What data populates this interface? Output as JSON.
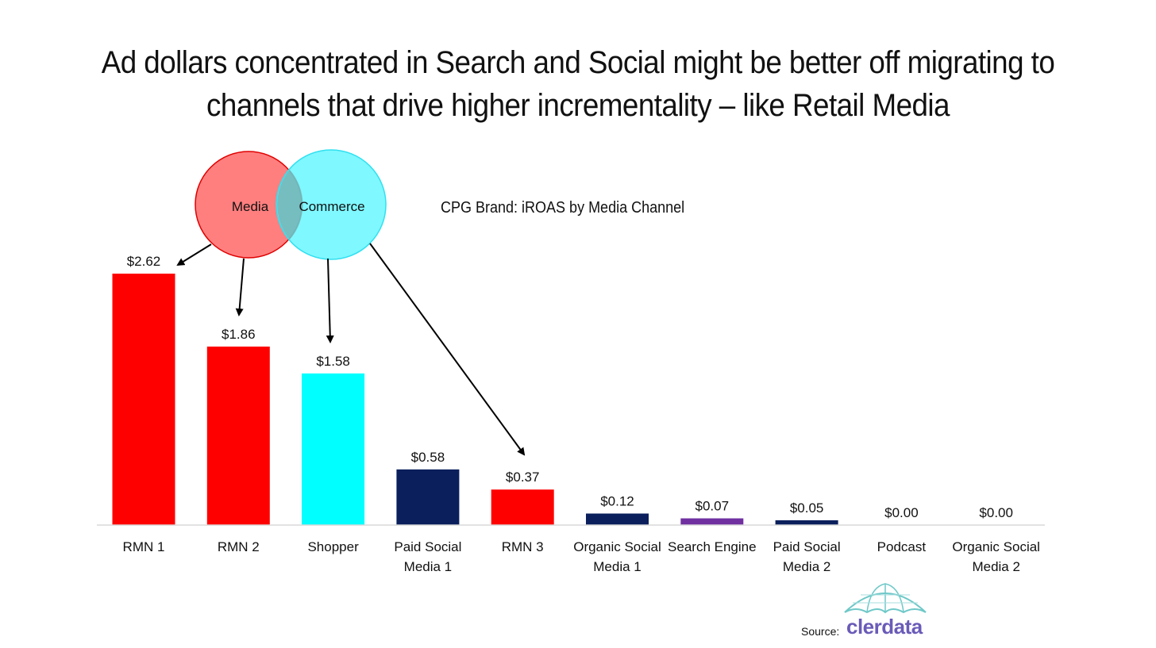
{
  "headline": {
    "line1": "Ad dollars concentrated in Search and Social might be better off migrating to",
    "line2": "channels that drive higher incrementality – like Retail Media"
  },
  "venn": {
    "left_label": "Media",
    "right_label": "Commerce",
    "left_color": "#ff8080",
    "right_color": "#80ffff"
  },
  "source": {
    "label": "Source:",
    "logo_text": "clerdata",
    "logo_color": "#6a5bb8"
  },
  "chart_data": {
    "type": "bar",
    "title": "CPG Brand: iROAS by Media Channel",
    "categories": [
      [
        "RMN 1"
      ],
      [
        "RMN 2"
      ],
      [
        "Shopper"
      ],
      [
        "Paid Social",
        "Media 1"
      ],
      [
        "RMN 3"
      ],
      [
        "Organic Social",
        "Media 1"
      ],
      [
        "Search Engine"
      ],
      [
        "Paid Social",
        "Media 2"
      ],
      [
        "Podcast"
      ],
      [
        "Organic Social",
        "Media 2"
      ]
    ],
    "values": [
      2.62,
      1.86,
      1.58,
      0.58,
      0.37,
      0.12,
      0.07,
      0.05,
      0.0,
      0.0
    ],
    "data_labels": [
      "$2.62",
      "$1.86",
      "$1.58",
      "$0.58",
      "$0.37",
      "$0.12",
      "$0.07",
      "$0.05",
      "$0.00",
      "$0.00"
    ],
    "colors": [
      "#ff0000",
      "#ff0000",
      "#00ffff",
      "#0a1f5c",
      "#ff0000",
      "#0a1f5c",
      "#7030a0",
      "#0a1f5c",
      "#0a1f5c",
      "#0a1f5c"
    ],
    "xlabel": "",
    "ylabel": "",
    "ylim": [
      0,
      2.62
    ],
    "grid": false,
    "legend": "none"
  }
}
